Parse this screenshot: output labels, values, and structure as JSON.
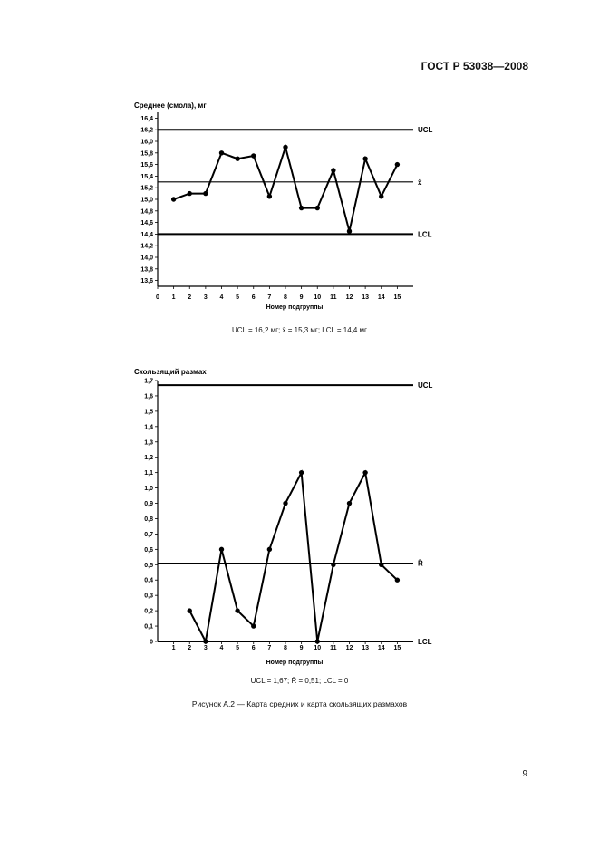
{
  "document": {
    "header": "ГОСТ Р 53038—2008",
    "page_number": "9",
    "figure_caption": "Рисунок А.2 — Карта средних и карта скользящих размахов"
  },
  "chart_data": [
    {
      "type": "line",
      "title": "Среднее (смола), мг",
      "xlabel": "Номер подгруппы",
      "ylabel": "Среднее (смола), мг",
      "x": [
        1,
        2,
        3,
        4,
        5,
        6,
        7,
        8,
        9,
        10,
        11,
        12,
        13,
        14,
        15
      ],
      "series": [
        {
          "values": [
            15.0,
            15.1,
            15.1,
            15.8,
            15.7,
            15.75,
            15.05,
            15.9,
            14.85,
            14.85,
            15.5,
            14.45,
            15.7,
            15.05,
            15.6
          ]
        }
      ],
      "xlim": [
        0,
        16
      ],
      "ylim": [
        13.5,
        16.5
      ],
      "x_tick_labels": [
        "0",
        "1",
        "2",
        "3",
        "4",
        "5",
        "6",
        "7",
        "8",
        "9",
        "10",
        "11",
        "12",
        "13",
        "14",
        "15"
      ],
      "y_ticks": [
        13.6,
        13.8,
        14.0,
        14.2,
        14.4,
        14.6,
        14.8,
        15.0,
        15.2,
        15.4,
        15.6,
        15.8,
        16.0,
        16.2,
        16.4
      ],
      "y_tick_labels": [
        "13,6",
        "13,8",
        "14,0",
        "14,2",
        "14,4",
        "14,6",
        "14,8",
        "15,0",
        "15,2",
        "15,4",
        "15,6",
        "15,8",
        "16,0",
        "16,2",
        "16,4"
      ],
      "reference_lines": [
        {
          "label": "UCL",
          "value": 16.2
        },
        {
          "label": "x̄",
          "value": 15.3
        },
        {
          "label": "LCL",
          "value": 14.4
        }
      ],
      "caption": "UCL = 16,2 мг; x̄ = 15,3 мг; LCL = 14,4 мг",
      "grid": false
    },
    {
      "type": "line",
      "title": "Скользящий размах",
      "xlabel": "Номер подгруппы",
      "ylabel": "Скользящий размах",
      "x": [
        2,
        3,
        4,
        5,
        6,
        7,
        8,
        9,
        10,
        11,
        12,
        13,
        14,
        15
      ],
      "series": [
        {
          "values": [
            0.2,
            0.0,
            0.6,
            0.2,
            0.1,
            0.6,
            0.9,
            1.1,
            0.0,
            0.5,
            0.9,
            1.1,
            0.5,
            0.4
          ]
        }
      ],
      "xlim": [
        0,
        16
      ],
      "ylim": [
        0,
        1.7
      ],
      "x_tick_labels": [
        "1",
        "2",
        "3",
        "4",
        "5",
        "6",
        "7",
        "8",
        "9",
        "10",
        "11",
        "12",
        "13",
        "14",
        "15"
      ],
      "y_ticks": [
        0,
        0.1,
        0.2,
        0.3,
        0.4,
        0.5,
        0.6,
        0.7,
        0.8,
        0.9,
        1.0,
        1.1,
        1.2,
        1.3,
        1.4,
        1.5,
        1.6,
        1.7
      ],
      "y_tick_labels": [
        "0",
        "0,1",
        "0,2",
        "0,3",
        "0,4",
        "0,5",
        "0,6",
        "0,7",
        "0,8",
        "0,9",
        "1,0",
        "1,1",
        "1,2",
        "1,3",
        "1,4",
        "1,5",
        "1,6",
        "1,7"
      ],
      "reference_lines": [
        {
          "label": "UCL",
          "value": 1.67
        },
        {
          "label": "R̄",
          "value": 0.51
        },
        {
          "label": "LCL",
          "value": 0
        }
      ],
      "caption": "UCL = 1,67; R̄ = 0,51; LCL = 0",
      "grid": false
    }
  ]
}
